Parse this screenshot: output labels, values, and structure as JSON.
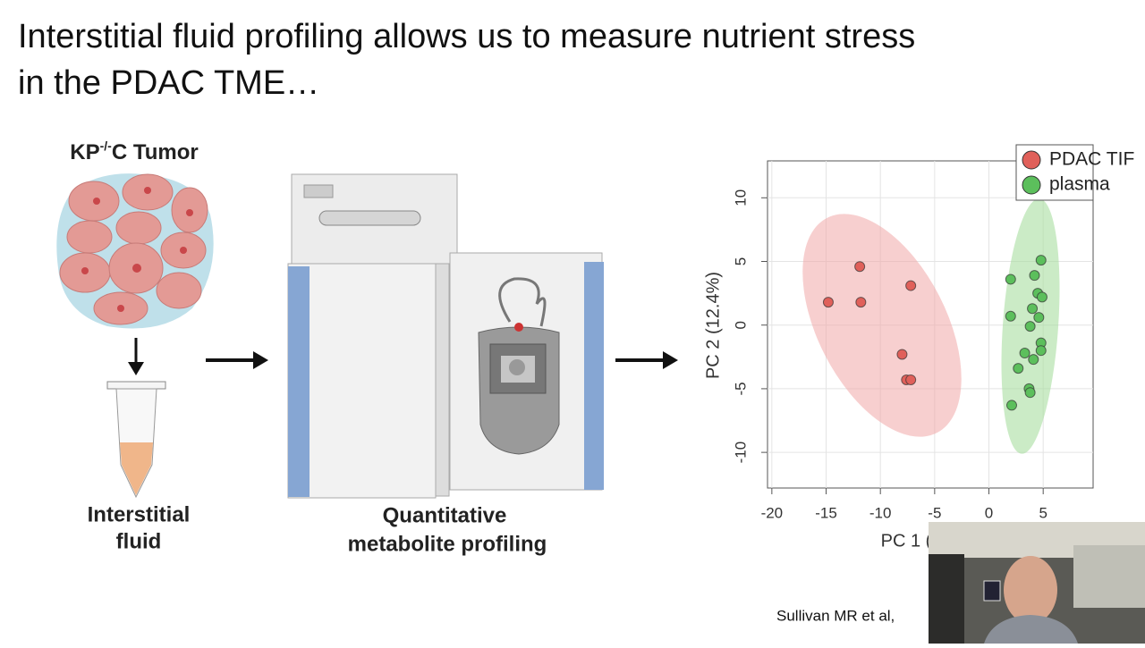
{
  "slide": {
    "title_lines": [
      "Interstitial fluid profiling allows us to measure nutrient stress",
      "in the PDAC TME…"
    ],
    "tumor_label": [
      "KP",
      "-/-",
      "C Tumor"
    ],
    "fluid_label": [
      "Interstitial",
      "fluid"
    ],
    "profiling_label": [
      "Quantitative",
      "metabolite profiling"
    ],
    "citation": "Sullivan MR et al,"
  },
  "chart_data": {
    "type": "scatter",
    "x_label": "PC 1 (",
    "y_label": "PC 2 (12.4%)",
    "xlim": [
      -20.4,
      9.6
    ],
    "ylim": [
      -12.8,
      12.9
    ],
    "xticks": [
      -20,
      -15,
      -10,
      -5,
      0,
      5
    ],
    "yticks": [
      -10,
      -5,
      0,
      5,
      10
    ],
    "grid": true,
    "legend": "top-right",
    "series": [
      {
        "name": "PDAC TIF",
        "color": "#e0605a",
        "x": [
          -14.8,
          -11.9,
          -11.8,
          -7.2,
          -8.0,
          -7.6,
          -7.2
        ],
        "y": [
          1.8,
          4.6,
          1.8,
          3.1,
          -2.3,
          -4.3,
          -4.3
        ]
      },
      {
        "name": "plasma",
        "color": "#5cbf5c",
        "x": [
          2.0,
          4.8,
          4.2,
          4.5,
          4.9,
          2.0,
          4.0,
          4.6,
          3.8,
          4.8,
          4.8,
          3.3,
          4.1,
          2.7,
          3.7,
          3.8,
          2.1
        ],
        "y": [
          3.6,
          5.1,
          3.9,
          2.5,
          2.2,
          0.7,
          1.3,
          0.6,
          -0.1,
          -1.4,
          -2.0,
          -2.2,
          -2.7,
          -3.4,
          -5.0,
          -5.3,
          -6.3
        ]
      }
    ]
  }
}
